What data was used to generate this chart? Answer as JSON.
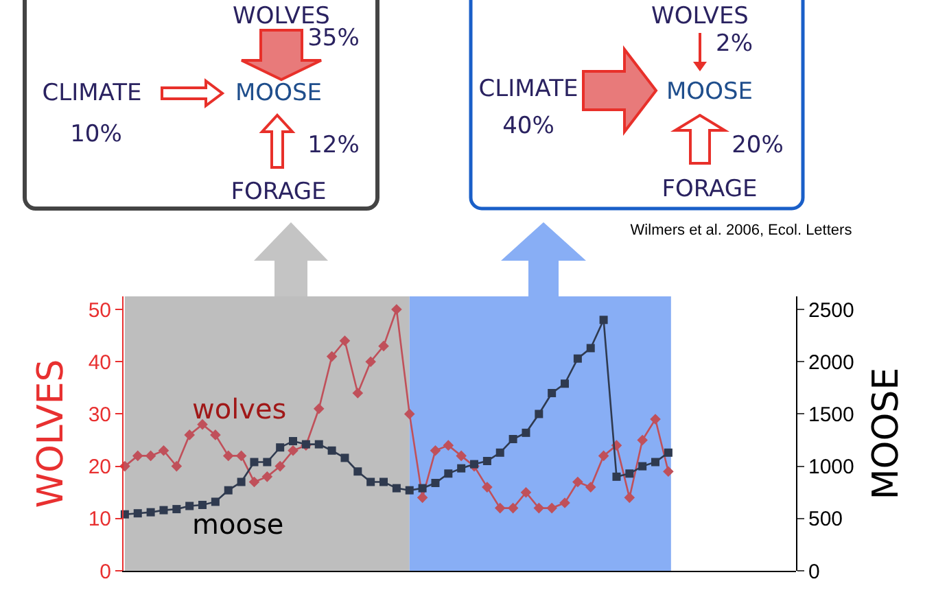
{
  "chart_data": {
    "type": "line",
    "categories": [
      null,
      null,
      null,
      null,
      null,
      null,
      null,
      null,
      null,
      null,
      null,
      null,
      null,
      null,
      null,
      null,
      null,
      null,
      null,
      null,
      null,
      null,
      null,
      null,
      null,
      null,
      null,
      null,
      null,
      null,
      null,
      null,
      null,
      null,
      null,
      null,
      null,
      null,
      null,
      null,
      null,
      null,
      null
    ],
    "ylabel": "WOLVES",
    "y2label": "MOOSE",
    "ylim": [
      0,
      52.5
    ],
    "yticks": [
      0,
      10,
      20,
      30,
      40,
      50
    ],
    "y2lim": [
      0,
      2625
    ],
    "y2ticks": [
      0,
      500,
      1000,
      1500,
      2000,
      2500
    ],
    "series": [
      {
        "name": "wolves",
        "color": "#c0505a",
        "marker": "diamond",
        "values": [
          20,
          22,
          22,
          23,
          20,
          26,
          28,
          26,
          22,
          22,
          17,
          18,
          20,
          23,
          24,
          31,
          41,
          44,
          34,
          40,
          43,
          50,
          30,
          14,
          23,
          24,
          22,
          20,
          16,
          12,
          12,
          15,
          12,
          12,
          13,
          17,
          16,
          22,
          24,
          14,
          25,
          29,
          19
        ]
      },
      {
        "name": "moose",
        "color": "#2f3a4f",
        "marker": "square",
        "axis": "y2",
        "values": [
          540,
          550,
          560,
          580,
          590,
          620,
          630,
          660,
          770,
          850,
          1040,
          1040,
          1180,
          1240,
          1210,
          1210,
          1150,
          1080,
          950,
          850,
          850,
          790,
          770,
          790,
          840,
          930,
          980,
          1020,
          1050,
          1130,
          1260,
          1320,
          1500,
          1700,
          1790,
          2030,
          2130,
          2400,
          900,
          930,
          1000,
          1040,
          1130
        ]
      }
    ],
    "grid": false,
    "legend": false,
    "annotations": [
      "WOLVES",
      "35%",
      "CLIMATE",
      "10%",
      "MOOSE",
      "12%",
      "FORAGE",
      "WOLVES",
      "2%",
      "CLIMATE",
      "40%",
      "MOOSE",
      "20%",
      "FORAGE",
      "Wilmers et al. 2006, Ecol. Letters"
    ]
  }
}
